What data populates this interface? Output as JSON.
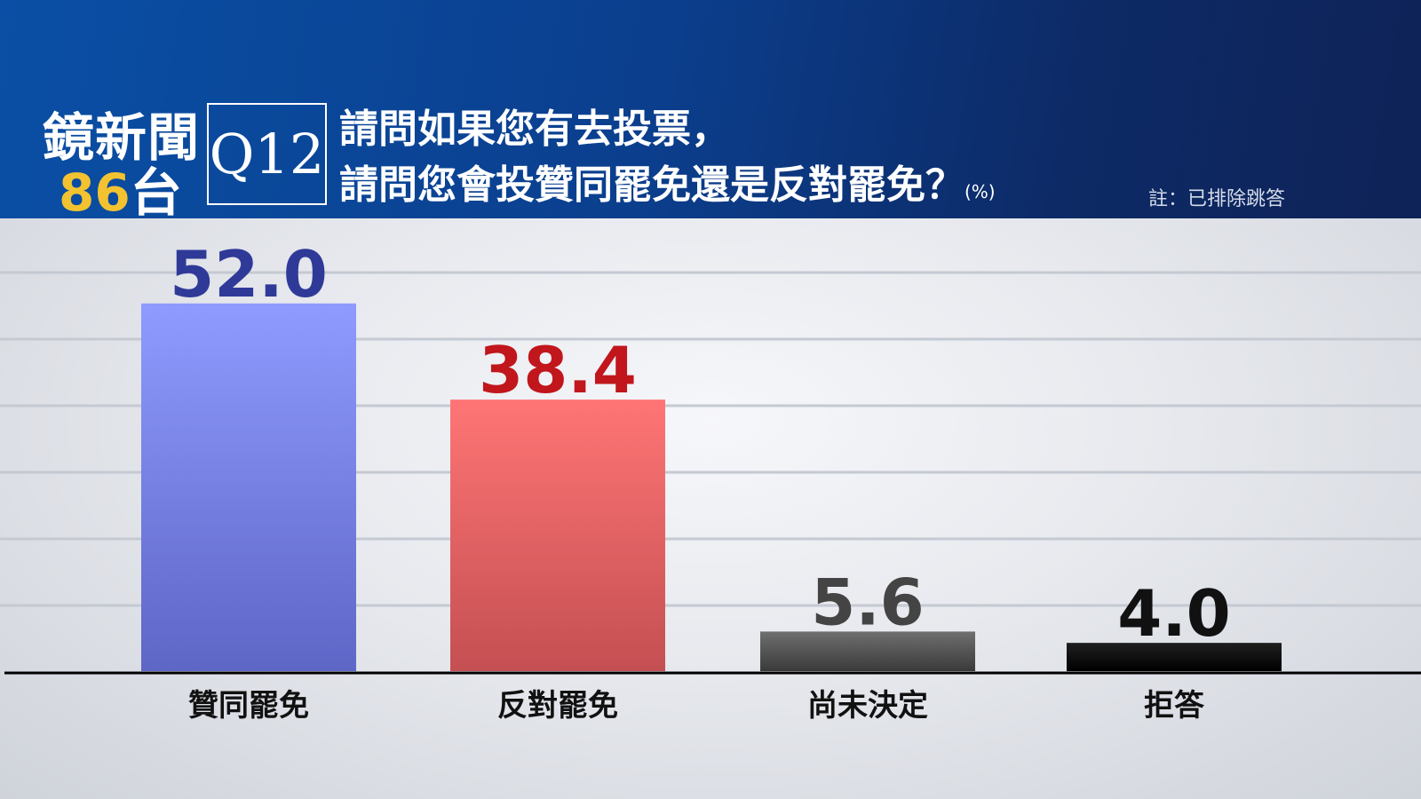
{
  "brand": {
    "name": "鏡新聞",
    "channel_number": "86",
    "channel_suffix": "台"
  },
  "question": {
    "id": "Q12",
    "line1": "請問如果您有去投票，",
    "line2": "請問您會投贊同罷免還是反對罷免？",
    "unit": "(%)"
  },
  "note": "註：已排除跳答",
  "chart_data": {
    "type": "bar",
    "categories": [
      "贊同罷免",
      "反對罷免",
      "尚未決定",
      "拒答"
    ],
    "values": [
      52.0,
      38.4,
      5.6,
      4.0
    ],
    "value_labels": [
      "52.0",
      "38.4",
      "5.6",
      "4.0"
    ],
    "title": "請問如果您有去投票，請問您會投贊同罷免還是反對罷免？",
    "ylabel": "(%)",
    "xlabel": "",
    "ylim": [
      0,
      58
    ],
    "grid": true,
    "legend": "none",
    "colors": {
      "bars": [
        [
          "#8f9bff",
          "#5e66c6"
        ],
        [
          "#ff7575",
          "#c44f52"
        ],
        [
          "#6f6f6f",
          "#3a3a3a"
        ],
        [
          "#1f1f1f",
          "#000000"
        ]
      ],
      "labels": [
        "#2f3a98",
        "#c0161c",
        "#444444",
        "#111111"
      ]
    }
  }
}
